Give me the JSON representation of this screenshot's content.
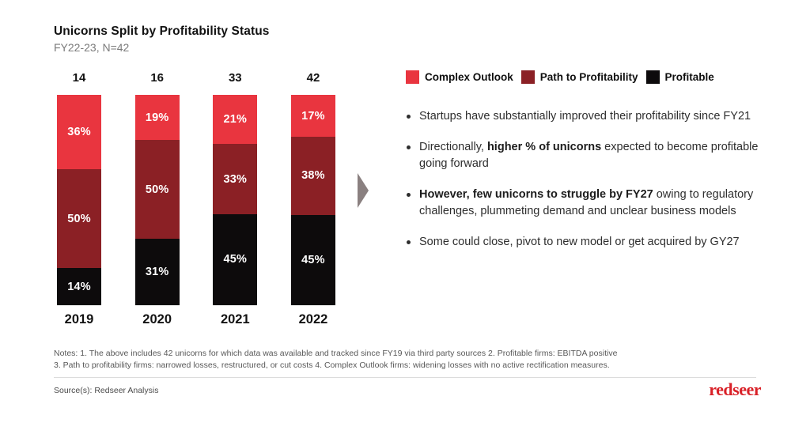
{
  "header": {
    "title": "Unicorns Split by Profitability Status",
    "subtitle": "FY22-23, N=42"
  },
  "chart_data": {
    "type": "bar",
    "subtype": "stacked-100-percent",
    "title": "Unicorns Split by Profitability Status",
    "subtitle": "FY22-23, N=42",
    "categories": [
      "2019",
      "2020",
      "2021",
      "2022"
    ],
    "totals": [
      14,
      16,
      33,
      42
    ],
    "series": [
      {
        "name": "Complex Outlook",
        "color": "#e9353f",
        "values": [
          36,
          19,
          21,
          17
        ]
      },
      {
        "name": "Path to Profitability",
        "color": "#8b2025",
        "values": [
          50,
          50,
          33,
          38
        ]
      },
      {
        "name": "Profitable",
        "color": "#0d0b0c",
        "values": [
          14,
          31,
          45,
          45
        ]
      }
    ],
    "value_suffix": "%",
    "label_color": "#ffffff",
    "legend_position": "top-right",
    "grid": false
  },
  "insights": {
    "bullets": [
      {
        "segments": [
          {
            "text": "Startups have substantially improved their profitability since FY21",
            "bold": false
          }
        ]
      },
      {
        "segments": [
          {
            "text": "Directionally, ",
            "bold": false
          },
          {
            "text": "higher % of unicorns",
            "bold": true
          },
          {
            "text": " expected to become profitable going forward",
            "bold": false
          }
        ]
      },
      {
        "segments": [
          {
            "text": "However, few unicorns to struggle by FY27",
            "bold": true
          },
          {
            "text": " owing to regulatory challenges, plummeting demand and unclear business models",
            "bold": false
          }
        ]
      },
      {
        "segments": [
          {
            "text": "Some could close, pivot to new model or get acquired by GY27",
            "bold": false
          }
        ]
      }
    ]
  },
  "notes_lines": [
    "Notes: 1. The above includes 42 unicorns for which data was available and tracked since FY19 via third party sources 2. Profitable firms: EBITDA positive",
    "3. Path to profitability firms: narrowed losses, restructured, or cut costs 4. Complex Outlook firms: widening losses with no active rectification measures."
  ],
  "footer": {
    "source": "Source(s): Redseer Analysis",
    "logo_text": "redseer",
    "logo_color": "#d92128"
  },
  "arrow_color": "#8a8080"
}
